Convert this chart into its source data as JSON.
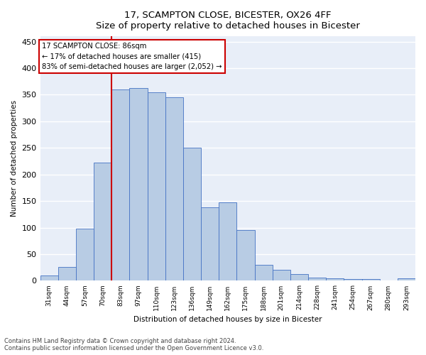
{
  "title": "17, SCAMPTON CLOSE, BICESTER, OX26 4FF",
  "subtitle": "Size of property relative to detached houses in Bicester",
  "xlabel": "Distribution of detached houses by size in Bicester",
  "ylabel": "Number of detached properties",
  "categories": [
    "31sqm",
    "44sqm",
    "57sqm",
    "70sqm",
    "83sqm",
    "97sqm",
    "110sqm",
    "123sqm",
    "136sqm",
    "149sqm",
    "162sqm",
    "175sqm",
    "188sqm",
    "201sqm",
    "214sqm",
    "228sqm",
    "241sqm",
    "254sqm",
    "267sqm",
    "280sqm",
    "293sqm"
  ],
  "values": [
    10,
    26,
    98,
    222,
    360,
    363,
    355,
    345,
    250,
    138,
    148,
    96,
    30,
    20,
    12,
    6,
    5,
    3,
    3,
    0,
    4
  ],
  "bar_color": "#b8cce4",
  "bar_edge_color": "#4472c4",
  "plot_bg_color": "#e8eef8",
  "annotation_text_line1": "17 SCAMPTON CLOSE: 86sqm",
  "annotation_text_line2": "← 17% of detached houses are smaller (415)",
  "annotation_text_line3": "83% of semi-detached houses are larger (2,052) →",
  "annotation_box_facecolor": "#ffffff",
  "annotation_box_edgecolor": "#cc0000",
  "vline_color": "#cc0000",
  "vline_x_index": 4,
  "ylim": [
    0,
    460
  ],
  "yticks": [
    0,
    50,
    100,
    150,
    200,
    250,
    300,
    350,
    400,
    450
  ],
  "title_fontsize": 9.5,
  "subtitle_fontsize": 8.5,
  "footnote1": "Contains HM Land Registry data © Crown copyright and database right 2024.",
  "footnote2": "Contains public sector information licensed under the Open Government Licence v3.0."
}
